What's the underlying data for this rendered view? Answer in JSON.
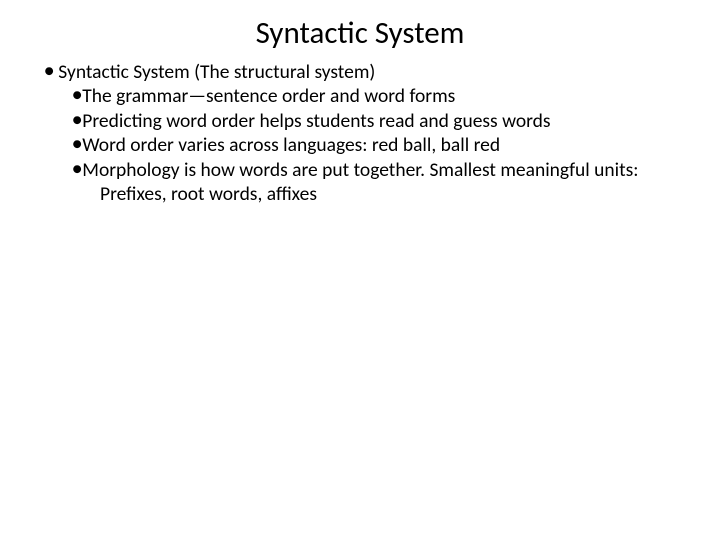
{
  "slide": {
    "title": "Syntactic System",
    "title_fontsize": 31,
    "body_fontsize": 19.5,
    "text_color": "#000000",
    "background_color": "#ffffff",
    "bullet_glyph": "●",
    "level1": {
      "text": "Syntactic System (The structural system)"
    },
    "level2": [
      {
        "text": "The grammar—sentence order and word forms"
      },
      {
        "text": "Predicting word order helps students read and guess words"
      },
      {
        "text": "Word order varies across languages: red ball, ball red"
      },
      {
        "text": "Morphology is how words are put together. Smallest meaningful units:"
      }
    ],
    "level3": [
      {
        "text": "Prefixes, root words, affixes"
      }
    ]
  }
}
